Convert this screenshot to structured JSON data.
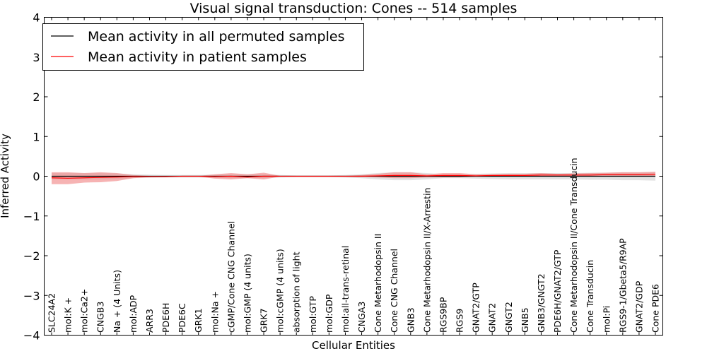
{
  "chart_data": {
    "type": "line",
    "title": "Visual signal transduction: Cones -- 514 samples",
    "xlabel": "Cellular Entities",
    "ylabel": "Inferred Activity",
    "ylim": [
      -4,
      4
    ],
    "yticks": [
      -4,
      -3,
      -2,
      -1,
      0,
      1,
      2,
      3,
      4
    ],
    "ytick_labels": [
      "−4",
      "−3",
      "−2",
      "−1",
      "0",
      "1",
      "2",
      "3",
      "4"
    ],
    "grid": false,
    "legend_position": "top-left",
    "categories": [
      "SLC24A2",
      "mol:K +",
      "mol:Ca2+",
      "CNGB3",
      "Na + (4 Units)",
      "mol:ADP",
      "ARR3",
      "PDE6H",
      "PDE6C",
      "GRK1",
      "mol:Na +",
      "cGMP/Cone CNG Channel",
      "mol:GMP (4 units)",
      "GRK7",
      "mol:cGMP (4 units)",
      "absorption of light",
      "mol:GTP",
      "mol:GDP",
      "mol:all-trans-retinal",
      "CNGA3",
      "Cone Metarhodopsin II",
      "Cone CNG Channel",
      "GNB3",
      "Cone Metarhodopsin II/X-Arrestin",
      "RGS9BP",
      "RGS9",
      "GNAT2/GTP",
      "GNAT2",
      "GNGT2",
      "GNB5",
      "GNB3/GNGT2",
      "PDE6H/GNAT2/GTP",
      "Cone Metarhodopsin II/Cone Transducin",
      "Cone Transducin",
      "mol:Pi",
      "RGS9-1/Gbeta5/R9AP",
      "GNAT2/GDP",
      "Cone PDE6"
    ],
    "series": [
      {
        "name": "Mean activity in all permuted samples",
        "color": "#000000",
        "band_color": "#c8c8c8",
        "values": [
          0.0,
          0.0,
          0.0,
          0.0,
          0.0,
          0.0,
          0.0,
          0.0,
          0.0,
          0.0,
          0.0,
          0.0,
          0.0,
          0.0,
          0.0,
          0.0,
          0.0,
          0.0,
          0.0,
          0.0,
          0.0,
          0.0,
          0.0,
          0.0,
          0.0,
          0.0,
          0.0,
          0.0,
          0.0,
          0.0,
          0.0,
          0.0,
          0.0,
          0.0,
          0.0,
          0.0,
          0.0,
          0.0
        ],
        "lower": [
          -0.08,
          -0.08,
          -0.08,
          -0.08,
          -0.07,
          -0.05,
          -0.04,
          -0.03,
          -0.03,
          -0.03,
          -0.04,
          -0.05,
          -0.05,
          -0.05,
          -0.03,
          -0.02,
          -0.02,
          -0.02,
          -0.03,
          -0.05,
          -0.08,
          -0.1,
          -0.1,
          -0.08,
          -0.05,
          -0.05,
          -0.06,
          -0.07,
          -0.08,
          -0.08,
          -0.08,
          -0.08,
          -0.08,
          -0.09,
          -0.09,
          -0.1,
          -0.1,
          -0.11
        ],
        "upper": [
          0.08,
          0.08,
          0.08,
          0.08,
          0.07,
          0.05,
          0.04,
          0.03,
          0.03,
          0.03,
          0.04,
          0.05,
          0.05,
          0.05,
          0.03,
          0.02,
          0.02,
          0.02,
          0.03,
          0.05,
          0.08,
          0.1,
          0.1,
          0.08,
          0.05,
          0.05,
          0.06,
          0.07,
          0.08,
          0.08,
          0.08,
          0.08,
          0.08,
          0.09,
          0.09,
          0.1,
          0.1,
          0.11
        ]
      },
      {
        "name": "Mean activity in patient samples",
        "color": "#ff0000",
        "band_color": "#f08080",
        "values": [
          -0.04,
          -0.05,
          -0.04,
          -0.03,
          -0.02,
          -0.01,
          -0.01,
          -0.01,
          0.0,
          0.0,
          -0.01,
          0.0,
          -0.02,
          0.0,
          0.0,
          0.0,
          0.0,
          0.0,
          0.0,
          0.0,
          0.01,
          0.02,
          0.02,
          0.01,
          0.02,
          0.02,
          0.01,
          0.02,
          0.02,
          0.02,
          0.03,
          0.03,
          0.03,
          0.03,
          0.04,
          0.04,
          0.04,
          0.05
        ],
        "lower": [
          -0.2,
          -0.2,
          -0.16,
          -0.15,
          -0.12,
          -0.05,
          -0.02,
          -0.01,
          -0.01,
          -0.01,
          -0.06,
          -0.08,
          -0.05,
          -0.08,
          -0.01,
          -0.01,
          -0.01,
          -0.01,
          -0.01,
          -0.02,
          -0.03,
          -0.05,
          -0.05,
          -0.03,
          -0.03,
          -0.03,
          -0.01,
          0.0,
          -0.01,
          -0.01,
          -0.01,
          0.0,
          0.0,
          0.0,
          0.0,
          0.0,
          -0.01,
          0.0
        ],
        "upper": [
          0.1,
          0.1,
          0.08,
          0.1,
          0.08,
          0.03,
          0.01,
          0.01,
          0.01,
          0.01,
          0.05,
          0.08,
          0.05,
          0.09,
          0.01,
          0.01,
          0.01,
          0.01,
          0.01,
          0.03,
          0.06,
          0.1,
          0.1,
          0.05,
          0.08,
          0.08,
          0.05,
          0.05,
          0.06,
          0.06,
          0.08,
          0.06,
          0.07,
          0.08,
          0.09,
          0.1,
          0.1,
          0.11
        ]
      }
    ]
  }
}
